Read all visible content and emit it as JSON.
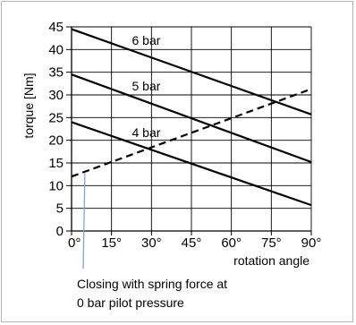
{
  "chart_data": {
    "type": "line",
    "xlabel": "rotation angle",
    "ylabel": "torque [Nm]",
    "xlim": [
      0,
      90
    ],
    "ylim": [
      0,
      45
    ],
    "x_ticks": [
      0,
      15,
      30,
      45,
      60,
      75,
      90
    ],
    "x_tick_labels": [
      "0°",
      "15°",
      "30°",
      "45°",
      "60°",
      "75°",
      "90°"
    ],
    "y_ticks": [
      0,
      5,
      10,
      15,
      20,
      25,
      30,
      35,
      40,
      45
    ],
    "y_tick_labels": [
      "0",
      "5",
      "10",
      "15",
      "20",
      "25",
      "30",
      "35",
      "40",
      "45"
    ],
    "grid": true,
    "series": [
      {
        "name": "6 bar",
        "x": [
          0,
          90
        ],
        "y": [
          44.5,
          25.7
        ],
        "style": "solid"
      },
      {
        "name": "5 bar",
        "x": [
          0,
          90
        ],
        "y": [
          34.5,
          15.2
        ],
        "style": "solid"
      },
      {
        "name": "4 bar",
        "x": [
          0,
          90
        ],
        "y": [
          24.0,
          5.7
        ],
        "style": "solid"
      },
      {
        "name": "",
        "x": [
          0,
          90
        ],
        "y": [
          12.0,
          31.3
        ],
        "style": "dashed"
      }
    ],
    "annotation": {
      "line1": "Closing with spring force at",
      "line2": "0 bar pilot pressure",
      "points_to_x": 5
    },
    "colors": {
      "lines": "#000000",
      "grid": "#000000",
      "pointer": "#7aa7d8",
      "frame": "#b4b4b4"
    }
  }
}
